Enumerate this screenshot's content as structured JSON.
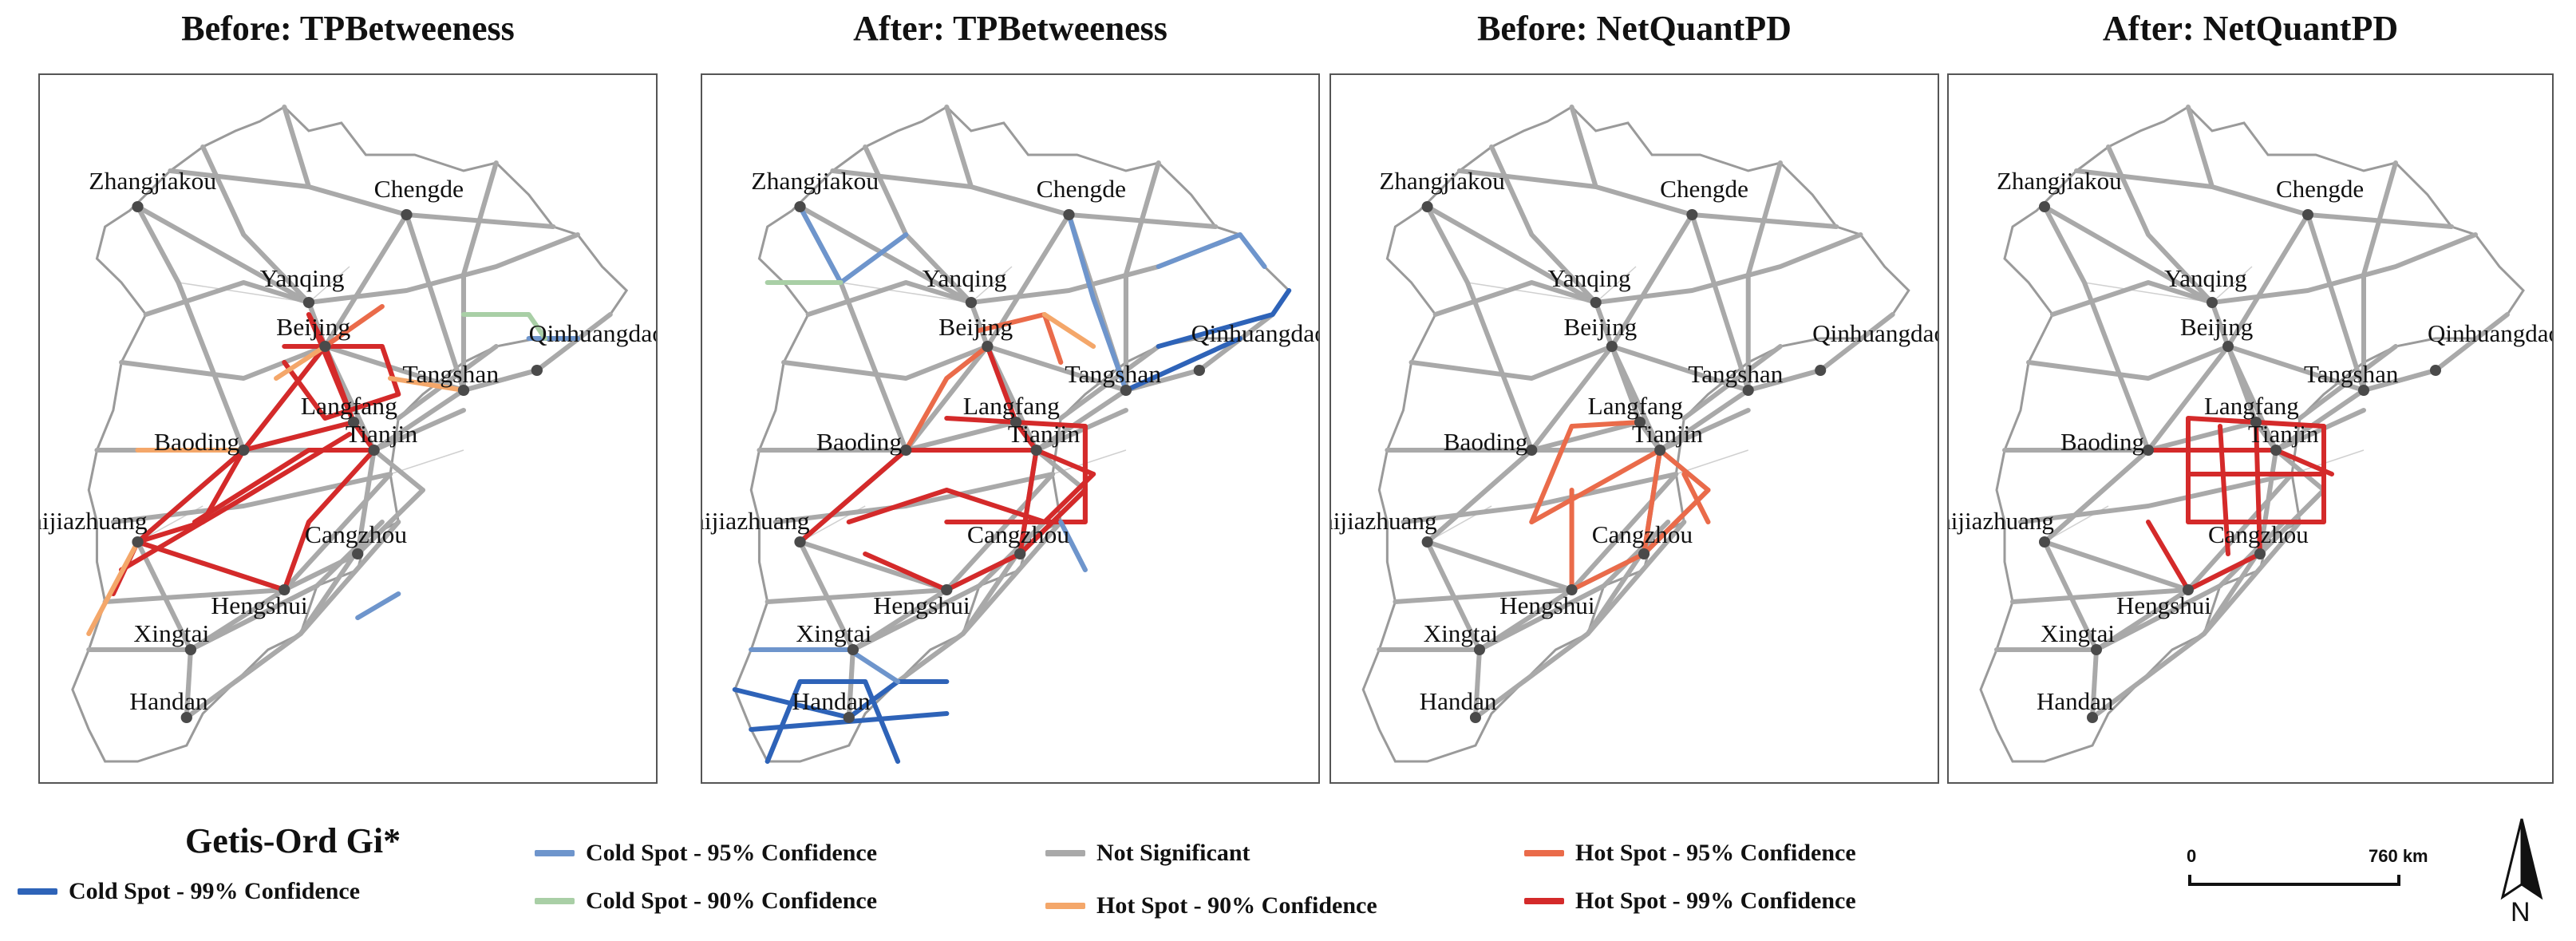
{
  "panels": [
    {
      "title": "Before: TPBetweeness",
      "scheme": "before_tpb"
    },
    {
      "title": "After: TPBetweeness",
      "scheme": "after_tpb"
    },
    {
      "title": "Before: NetQuantPD",
      "scheme": "before_nqpd"
    },
    {
      "title": "After: NetQuantPD",
      "scheme": "after_nqpd"
    }
  ],
  "cities": [
    "Zhangjiakou",
    "Chengde",
    "Yanqing",
    "Beijing",
    "Qinhuangdao",
    "Tangshan",
    "Langfang",
    "Tianjin",
    "Baoding",
    "Shijiazhuang",
    "Cangzhou",
    "Hengshui",
    "Xingtai",
    "Handan"
  ],
  "legend": {
    "title": "Getis-Ord Gi*",
    "items": [
      {
        "label": "Cold Spot - 99% Confidence",
        "color": "#2e63b8"
      },
      {
        "label": "Cold Spot - 95% Confidence",
        "color": "#6e95cc"
      },
      {
        "label": "Cold Spot - 90% Confidence",
        "color": "#a9cfa6"
      },
      {
        "label": "Not Significant",
        "color": "#a9a9a9"
      },
      {
        "label": "Hot Spot - 90% Confidence",
        "color": "#f4a76a"
      },
      {
        "label": "Hot Spot - 95% Confidence",
        "color": "#ea6b4a"
      },
      {
        "label": "Hot Spot - 99% Confidence",
        "color": "#d42a2a"
      }
    ]
  },
  "scale": {
    "start": "0",
    "end": "760 km"
  },
  "north_label": "N",
  "colors": {
    "gray_road": "#a9a9a9",
    "boundary": "#9a9a9a",
    "city_dot": "#4a4a4a"
  }
}
